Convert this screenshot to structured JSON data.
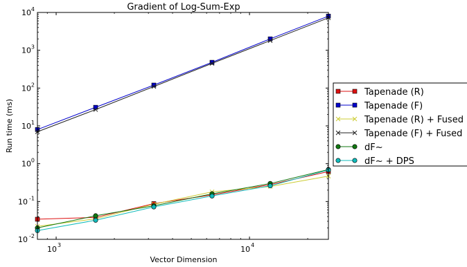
{
  "chart_data": {
    "type": "line",
    "title": "Gradient of Log-Sum-Exp",
    "xlabel": "Vector Dimension",
    "ylabel": "Run time (ms)",
    "xscale": "log",
    "yscale": "log",
    "xlim": [
      800,
      25600
    ],
    "ylim": [
      0.01,
      10000
    ],
    "x_ticks": [
      {
        "value": 1000,
        "base": "10",
        "exp": "3"
      },
      {
        "value": 10000,
        "base": "10",
        "exp": "4"
      }
    ],
    "y_ticks": [
      {
        "value": 0.01,
        "base": "10",
        "exp": "-2"
      },
      {
        "value": 0.1,
        "base": "10",
        "exp": "-1"
      },
      {
        "value": 1,
        "base": "10",
        "exp": "0"
      },
      {
        "value": 10,
        "base": "10",
        "exp": "1"
      },
      {
        "value": 100,
        "base": "10",
        "exp": "2"
      },
      {
        "value": 1000,
        "base": "10",
        "exp": "3"
      },
      {
        "value": 10000,
        "base": "10",
        "exp": "4"
      }
    ],
    "grid": false,
    "legend": "outside-right",
    "x": [
      800,
      1600,
      3200,
      6400,
      12800,
      25600
    ],
    "series": [
      {
        "name": "Tapenade (R)",
        "color": "#dd1111",
        "marker": "square",
        "values": [
          0.034,
          0.038,
          0.088,
          0.15,
          0.28,
          0.62
        ]
      },
      {
        "name": "Tapenade (F)",
        "color": "#0000cc",
        "marker": "square",
        "values": [
          8,
          31,
          120,
          480,
          2000,
          8000
        ]
      },
      {
        "name": "Tapenade (R) + Fused",
        "color": "#cccc33",
        "marker": "x",
        "values": [
          0.022,
          0.035,
          0.085,
          0.18,
          0.25,
          0.47
        ]
      },
      {
        "name": "Tapenade (F) + Fused",
        "color": "#222222",
        "marker": "x",
        "values": [
          7,
          27,
          110,
          450,
          1800,
          7200
        ]
      },
      {
        "name": "dF~",
        "color": "#117711",
        "marker": "circle",
        "values": [
          0.02,
          0.042,
          0.077,
          0.16,
          0.3,
          0.7
        ]
      },
      {
        "name": "dF~ + DPS",
        "color": "#11bbbb",
        "marker": "circle",
        "values": [
          0.017,
          0.032,
          0.072,
          0.14,
          0.26,
          0.68
        ]
      }
    ]
  }
}
